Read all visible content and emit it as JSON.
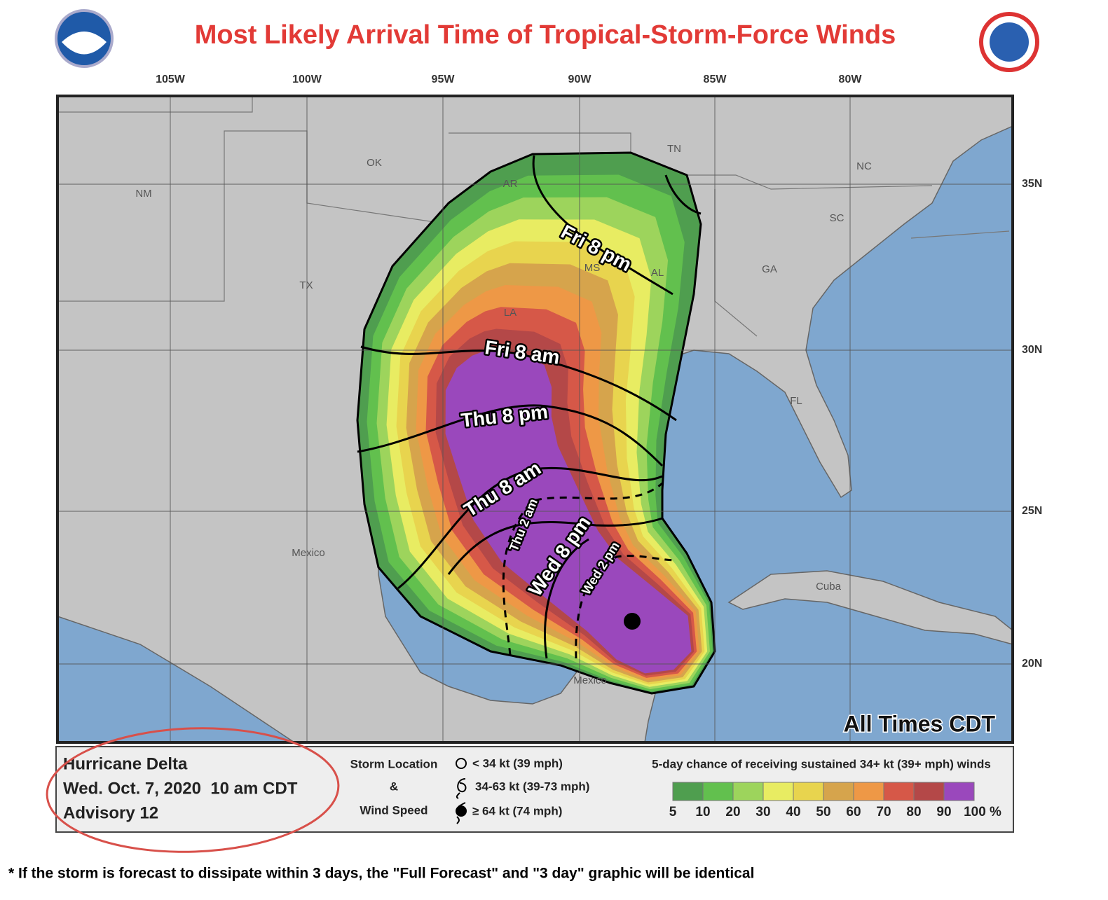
{
  "header": {
    "title": "Most Likely Arrival Time of Tropical-Storm-Force Winds"
  },
  "map": {
    "lon_labels": [
      "105W",
      "100W",
      "95W",
      "90W",
      "85W",
      "80W"
    ],
    "lat_labels": [
      "35N",
      "30N",
      "25N",
      "20N"
    ],
    "place_labels": [
      "NM",
      "OK",
      "AR",
      "TN",
      "NC",
      "SC",
      "GA",
      "MS",
      "AL",
      "LA",
      "TX",
      "FL",
      "Mexico",
      "Mexico",
      "Cuba"
    ],
    "time_labels": [
      "Fri 8 pm",
      "Fri 8 am",
      "Thu 8 pm",
      "Thu 8 am",
      "Thu 2 am",
      "Wed 8 pm",
      "Wed 2 pm"
    ],
    "note": "All Times CDT"
  },
  "legend": {
    "storm_name": "Hurricane Delta",
    "issued": "Wed. Oct. 7, 2020  10 am CDT",
    "advisory": "Advisory 12",
    "symbol_title": [
      "Storm Location",
      "&",
      "Wind Speed"
    ],
    "symbols": [
      "< 34 kt (39 mph)",
      "34-63 kt (39-73 mph)",
      "≥ 64 kt (74 mph)"
    ],
    "scale_title": "5-day chance of receiving sustained 34+ kt (39+ mph) winds",
    "scale_labels": [
      "5",
      "10",
      "20",
      "30",
      "40",
      "50",
      "60",
      "70",
      "80",
      "90",
      "100 %"
    ],
    "scale_colors": [
      "#4f9e4f",
      "#62c04e",
      "#9dd45c",
      "#e8ec62",
      "#e8d44e",
      "#d6a44c",
      "#ee9846",
      "#d65848",
      "#b44848",
      "#9a48bc"
    ]
  },
  "footnote": "* If the storm is forecast to dissipate within 3 days, the \"Full Forecast\" and \"3 day\" graphic will be identical"
}
